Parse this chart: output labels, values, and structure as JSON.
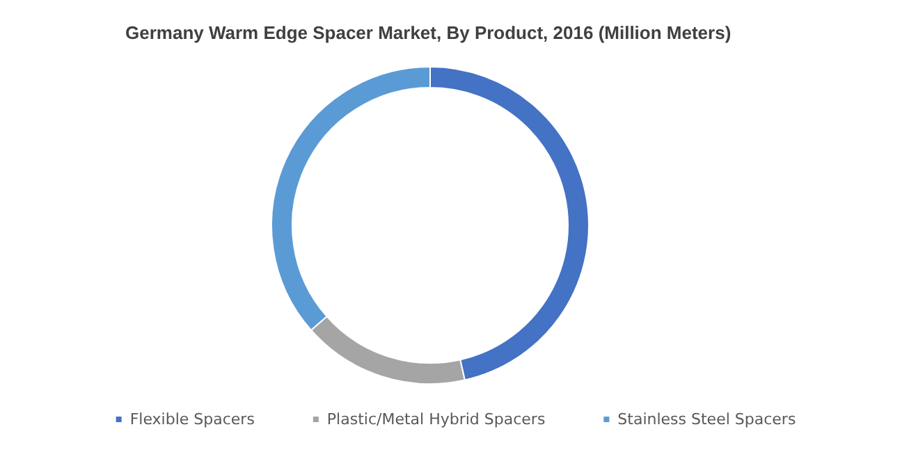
{
  "chart_data": {
    "type": "donut",
    "title": "Germany Warm Edge Spacer Market, By Product, 2016 (Million Meters)",
    "categories": [
      "Flexible Spacers",
      "Plastic/Metal Hybrid Spacers",
      "Stainless Steel Spacers"
    ],
    "values": [
      46.5,
      17,
      36.5
    ],
    "colors": [
      "#4472c4",
      "#a5a5a5",
      "#5b9bd5"
    ],
    "legend": "bottom"
  }
}
